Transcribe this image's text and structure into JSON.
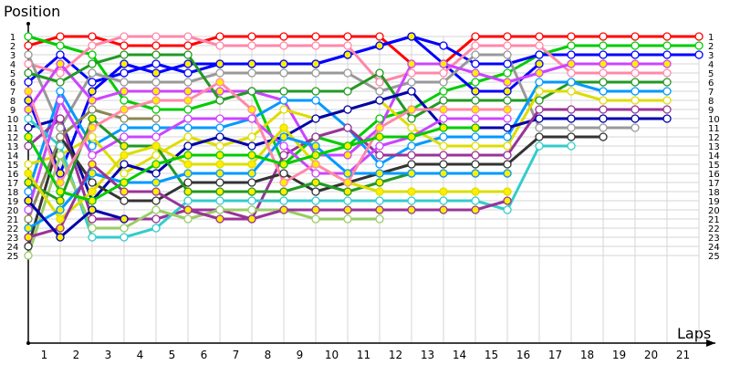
{
  "chart_data": {
    "type": "line",
    "title": "",
    "ylabel": "Position",
    "xlabel": "Laps",
    "x": [
      0,
      1,
      2,
      3,
      4,
      5,
      6,
      7,
      8,
      9,
      10,
      11,
      12,
      13,
      14,
      15,
      16,
      17,
      18,
      19,
      20,
      21
    ],
    "x_tick_labels": [
      "1",
      "2",
      "3",
      "4",
      "5",
      "6",
      "7",
      "8",
      "9",
      "10",
      "11",
      "12",
      "13",
      "14",
      "15",
      "16",
      "17",
      "18",
      "19",
      "20",
      "21"
    ],
    "y_tick_labels": [
      "1",
      "2",
      "3",
      "4",
      "5",
      "6",
      "7",
      "8",
      "9",
      "10",
      "11",
      "12",
      "13",
      "14",
      "15",
      "16",
      "17",
      "18",
      "19",
      "20",
      "21",
      "22",
      "23",
      "24",
      "25"
    ],
    "ylim": [
      1,
      25
    ],
    "y_inverted": true,
    "grid": true,
    "legend": false,
    "note": "Series values are approximate reconstructions; dense crossings in laps 1-3 could not be traced exactly.",
    "series": [
      {
        "name": "red",
        "color": "#ff0000",
        "fill": "white",
        "values": [
          2,
          1,
          1,
          2,
          2,
          2,
          1,
          1,
          1,
          1,
          1,
          1,
          4,
          4,
          1,
          1,
          1,
          1,
          1,
          1,
          1,
          1
        ]
      },
      {
        "name": "lime",
        "color": "#00cc00",
        "fill": "white",
        "values": [
          1,
          2,
          3,
          8,
          9,
          9,
          8,
          7,
          15,
          12,
          13,
          10,
          9,
          7,
          6,
          5,
          3,
          2,
          2,
          2,
          2,
          2
        ]
      },
      {
        "name": "blue",
        "color": "#0000ff",
        "fill": "white",
        "values": [
          6,
          3,
          6,
          5,
          4,
          5,
          4,
          4,
          4,
          4,
          3,
          2,
          1,
          2,
          4,
          4,
          3,
          3,
          3,
          3,
          3,
          3
        ]
      },
      {
        "name": "blue-yellow",
        "color": "#0000ff",
        "fill": "yellow",
        "values": [
          8,
          16,
          7,
          4,
          5,
          4,
          4,
          4,
          4,
          4,
          3,
          2,
          1,
          4,
          7,
          7,
          4,
          null,
          null,
          null,
          null,
          null
        ]
      },
      {
        "name": "pink",
        "color": "#ff88aa",
        "fill": "white",
        "values": [
          4,
          5,
          2,
          1,
          1,
          1,
          2,
          2,
          2,
          2,
          2,
          6,
          5,
          5,
          2,
          2,
          2,
          5,
          5,
          5,
          5,
          null
        ]
      },
      {
        "name": "gray",
        "color": "#999999",
        "fill": "white",
        "values": [
          3,
          11,
          5,
          6,
          6,
          6,
          5,
          5,
          5,
          5,
          5,
          7,
          6,
          6,
          3,
          3,
          11,
          11,
          11,
          11,
          null,
          null
        ]
      },
      {
        "name": "violet",
        "color": "#cc44ff",
        "fill": "yellow",
        "values": [
          9,
          4,
          8,
          7,
          7,
          7,
          7,
          7,
          8,
          14,
          14,
          11,
          4,
          4,
          5,
          6,
          5,
          4,
          4,
          4,
          4,
          null
        ]
      },
      {
        "name": "darkgreen",
        "color": "#229922",
        "fill": "white",
        "values": [
          5,
          6,
          4,
          3,
          3,
          3,
          8,
          7,
          7,
          7,
          7,
          5,
          10,
          8,
          8,
          8,
          8,
          6,
          6,
          6,
          6,
          null
        ]
      },
      {
        "name": "skyblue",
        "color": "#0099ff",
        "fill": "white",
        "values": [
          18,
          7,
          13,
          11,
          11,
          11,
          11,
          10,
          8,
          8,
          11,
          15,
          13,
          12,
          12,
          12,
          6,
          6,
          7,
          7,
          7,
          null
        ]
      },
      {
        "name": "yellow",
        "color": "#dddd00",
        "fill": "white",
        "values": [
          15,
          14,
          12,
          16,
          14,
          12,
          13,
          12,
          9,
          10,
          9,
          8,
          11,
          13,
          13,
          13,
          7,
          7,
          8,
          8,
          8,
          null
        ]
      },
      {
        "name": "navy",
        "color": "#0000aa",
        "fill": "white",
        "values": [
          11,
          10,
          19,
          15,
          16,
          13,
          12,
          13,
          12,
          10,
          9,
          8,
          7,
          11,
          11,
          11,
          10,
          10,
          10,
          10,
          10,
          null
        ]
      },
      {
        "name": "plum",
        "color": "#993399",
        "fill": "white",
        "values": [
          13,
          10,
          21,
          21,
          21,
          20,
          20,
          21,
          14,
          12,
          11,
          14,
          14,
          14,
          14,
          14,
          9,
          9,
          9,
          9,
          9,
          null
        ]
      },
      {
        "name": "charcoal",
        "color": "#333333",
        "fill": "white",
        "values": [
          24,
          12,
          17,
          19,
          19,
          17,
          17,
          17,
          16,
          18,
          17,
          16,
          15,
          15,
          15,
          15,
          12,
          12,
          12,
          null,
          null,
          null
        ]
      },
      {
        "name": "teal",
        "color": "#33cccc",
        "fill": "white",
        "values": [
          10,
          13,
          23,
          23,
          22,
          19,
          19,
          19,
          19,
          19,
          19,
          19,
          19,
          19,
          19,
          20,
          13,
          13,
          null,
          null,
          null,
          null
        ]
      },
      {
        "name": "olive",
        "color": "#888855",
        "fill": "white",
        "values": [
          21,
          12,
          9,
          10,
          10,
          null,
          null,
          null,
          null,
          null,
          null,
          null,
          null,
          null,
          null,
          null,
          null,
          null,
          null,
          null,
          null,
          null
        ]
      },
      {
        "name": "sage",
        "color": "#99cc66",
        "fill": "white",
        "values": [
          25,
          14,
          22,
          22,
          20,
          21,
          20,
          20,
          20,
          21,
          21,
          21,
          null,
          null,
          null,
          null,
          null,
          null,
          null,
          null,
          null,
          null
        ]
      },
      {
        "name": "magenta",
        "color": "#cc44ff",
        "fill": "white",
        "values": [
          20,
          8,
          14,
          12,
          12,
          10,
          10,
          10,
          13,
          16,
          16,
          13,
          12,
          10,
          10,
          10,
          null,
          null,
          null,
          null,
          null,
          null
        ]
      },
      {
        "name": "green-yellow",
        "color": "#229922",
        "fill": "yellow",
        "values": [
          17,
          19,
          10,
          13,
          13,
          18,
          18,
          18,
          18,
          17,
          18,
          17,
          16,
          16,
          16,
          16,
          null,
          null,
          null,
          null,
          null,
          null
        ]
      },
      {
        "name": "yellow-yellow",
        "color": "#dddd00",
        "fill": "yellow",
        "values": [
          16,
          21,
          18,
          14,
          13,
          15,
          15,
          15,
          11,
          15,
          17,
          18,
          18,
          18,
          18,
          18,
          null,
          null,
          null,
          null,
          null,
          null
        ]
      },
      {
        "name": "sky-yellow",
        "color": "#0099ff",
        "fill": "yellow",
        "values": [
          22,
          20,
          16,
          17,
          17,
          16,
          16,
          16,
          12,
          13,
          16,
          16,
          16,
          16,
          16,
          16,
          null,
          null,
          null,
          null,
          null,
          null
        ]
      },
      {
        "name": "plum-yellow",
        "color": "#993399",
        "fill": "yellow",
        "values": [
          23,
          22,
          15,
          18,
          18,
          20,
          21,
          21,
          20,
          20,
          20,
          20,
          20,
          20,
          20,
          19,
          null,
          null,
          null,
          null,
          null,
          null
        ]
      },
      {
        "name": "navy-yellow",
        "color": "#0000aa",
        "fill": "yellow",
        "values": [
          19,
          23,
          20,
          21,
          null,
          null,
          null,
          null,
          null,
          null,
          null,
          null,
          null,
          null,
          null,
          null,
          null,
          null,
          null,
          null,
          null,
          null
        ]
      },
      {
        "name": "pink-yellow",
        "color": "#ff88aa",
        "fill": "yellow",
        "values": [
          7,
          17,
          11,
          9,
          8,
          8,
          6,
          9,
          17,
          15,
          17,
          11,
          9,
          9,
          9,
          9,
          null,
          null,
          null,
          null,
          null,
          null
        ]
      },
      {
        "name": "lime-yellow",
        "color": "#00cc00",
        "fill": "yellow",
        "values": [
          12,
          18,
          19,
          17,
          15,
          14,
          14,
          14,
          15,
          14,
          13,
          12,
          12,
          11,
          11,
          null,
          null,
          null,
          null,
          null,
          null,
          null
        ]
      }
    ]
  }
}
